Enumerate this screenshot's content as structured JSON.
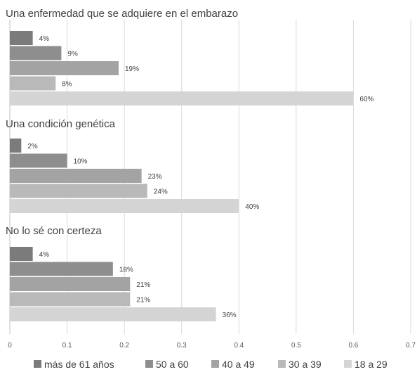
{
  "chart_data": {
    "type": "bar",
    "orientation": "horizontal",
    "categories": [
      "Una enfermedad que se adquiere en el embarazo",
      "Una condición genética",
      "No lo sé con certeza"
    ],
    "series": [
      {
        "name": "más de 61 años",
        "color": "#7b7b7b",
        "values": [
          0.04,
          0.02,
          0.04
        ],
        "labels": [
          "4%",
          "2%",
          "4%"
        ]
      },
      {
        "name": "50 a 60",
        "color": "#8e8e8e",
        "values": [
          0.09,
          0.1,
          0.18
        ],
        "labels": [
          "9%",
          "10%",
          "18%"
        ]
      },
      {
        "name": "40 a 49",
        "color": "#a3a3a3",
        "values": [
          0.19,
          0.23,
          0.21
        ],
        "labels": [
          "19%",
          "23%",
          "21%"
        ]
      },
      {
        "name": "30 a 39",
        "color": "#b9b9b9",
        "values": [
          0.08,
          0.24,
          0.21
        ],
        "labels": [
          "8%",
          "24%",
          "21%"
        ]
      },
      {
        "name": "18 a 29",
        "color": "#d4d4d4",
        "values": [
          0.6,
          0.4,
          0.36
        ],
        "labels": [
          "60%",
          "40%",
          "36%"
        ]
      }
    ],
    "xlim": [
      0,
      0.7
    ],
    "xticks": [
      "0",
      "0.1",
      "0.2",
      "0.3",
      "0.4",
      "0.5",
      "0.6",
      "0.7"
    ],
    "grid": true,
    "legend": "bottom",
    "title": "",
    "xlabel": "",
    "ylabel": ""
  }
}
